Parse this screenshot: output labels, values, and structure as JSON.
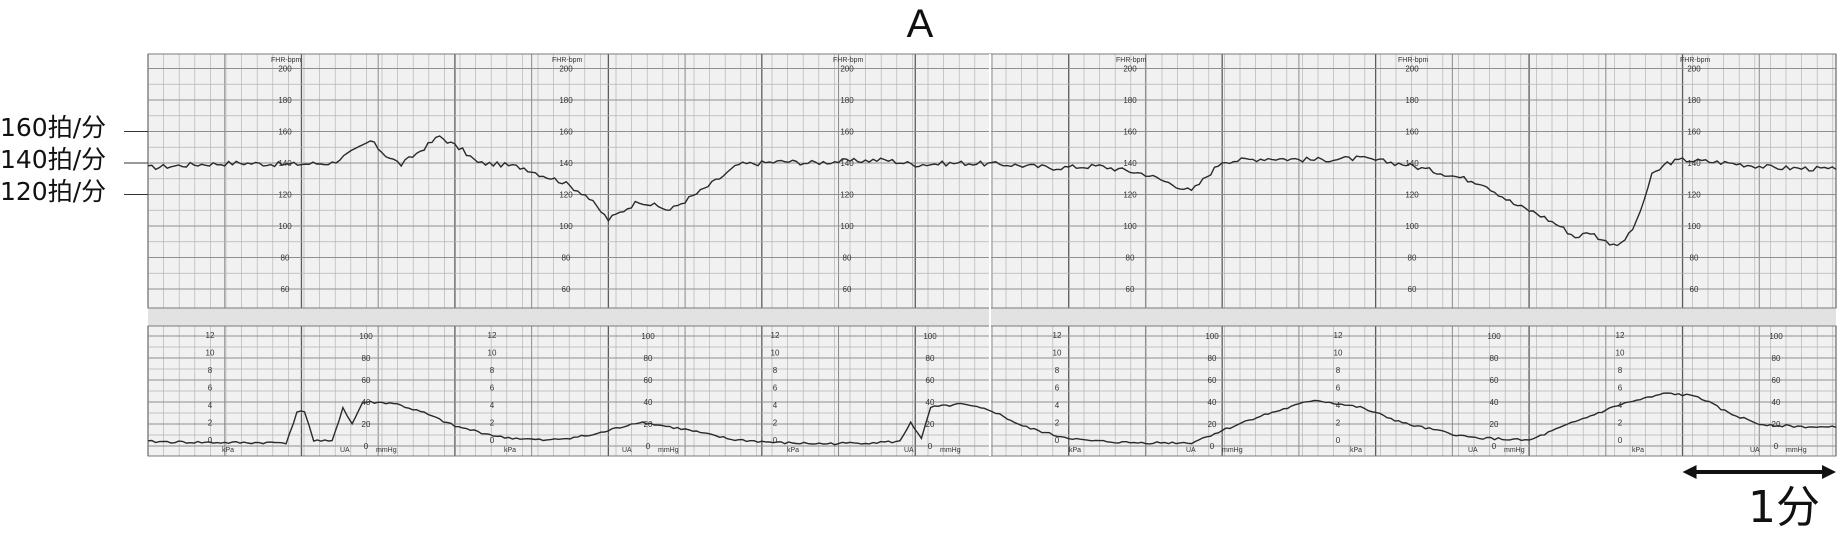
{
  "panel_label": "A",
  "fhr_markers": [
    {
      "label": "160拍/分",
      "value": 160
    },
    {
      "label": "140拍/分",
      "value": 140
    },
    {
      "label": "120拍/分",
      "value": 120
    }
  ],
  "scale_bar_label": "1分",
  "colors": {
    "grid": "#b5b5b5",
    "grid_major": "#5c5c5c",
    "paper": "#f1f1f1",
    "trace": "#2a2a2a",
    "axis": "#333333"
  },
  "chart_data": [
    {
      "type": "line",
      "title": "",
      "series": [
        {
          "name": "",
          "unit": "bpm"
        }
      ],
      "header_text": "FHR-bpm",
      "ylim": [
        50,
        210
      ],
      "tick_labels": [
        "200",
        "180",
        "160",
        "140",
        "120",
        "100",
        "80",
        "60"
      ],
      "x_unit": "min",
      "xlim": [
        0,
        11
      ],
      "x": [
        0,
        0.3,
        0.6,
        0.9,
        1.2,
        1.35,
        1.45,
        1.55,
        1.65,
        1.75,
        1.9,
        2.05,
        2.15,
        2.3,
        2.45,
        2.55,
        2.7,
        2.85,
        3,
        3.2,
        3.4,
        3.6,
        3.75,
        3.85,
        4,
        4.15,
        4.3,
        4.5,
        4.8,
        5,
        5.3,
        5.6,
        5.9,
        6.2,
        6.5,
        6.8,
        7,
        7.3,
        7.6,
        7.9,
        8.2,
        8.5,
        8.7,
        8.9,
        9.05,
        9.2,
        9.3,
        9.4,
        9.5,
        9.6,
        9.7,
        9.8,
        9.9,
        10,
        10.15,
        10.3,
        10.6,
        11
      ],
      "y": [
        137,
        139,
        140,
        139,
        140,
        148,
        154,
        145,
        139,
        146,
        157,
        148,
        140,
        139,
        137,
        133,
        128,
        120,
        104,
        116,
        110,
        122,
        132,
        139,
        140,
        141,
        140,
        141,
        142,
        139,
        140,
        139,
        137,
        138,
        133,
        122,
        141,
        143,
        142,
        143,
        139,
        132,
        127,
        114,
        108,
        100,
        93,
        96,
        90,
        88,
        102,
        132,
        140,
        142,
        141,
        140,
        137,
        136
      ]
    },
    {
      "type": "line",
      "title": "",
      "series": [
        {
          "name": "",
          "unit": "mmHg"
        }
      ],
      "tick_labels_kpa": [
        "12",
        "10",
        "8",
        "6",
        "4",
        "2",
        "0"
      ],
      "tick_labels_mmhg": [
        "100",
        "80",
        "60",
        "40",
        "20",
        "0"
      ],
      "unit_labels": [
        "kPa",
        "UA",
        "mmHg"
      ],
      "ylim": [
        0,
        100
      ],
      "x_unit": "min",
      "xlim": [
        0,
        11
      ],
      "x": [
        0,
        0.5,
        0.9,
        0.97,
        1.02,
        1.08,
        1.2,
        1.27,
        1.33,
        1.4,
        1.6,
        1.8,
        2,
        2.3,
        2.6,
        2.9,
        3.2,
        3.5,
        3.8,
        4.1,
        4.4,
        4.7,
        4.9,
        4.97,
        5.04,
        5.1,
        5.3,
        5.5,
        5.7,
        5.9,
        6.1,
        6.4,
        6.8,
        7.2,
        7.6,
        7.9,
        8.2,
        8.6,
        9,
        9.3,
        9.6,
        9.9,
        10.1,
        10.3,
        10.5,
        10.7,
        10.9,
        11
      ],
      "y": [
        4,
        3,
        3,
        30,
        32,
        5,
        4,
        35,
        20,
        40,
        39,
        30,
        18,
        8,
        5,
        10,
        22,
        15,
        6,
        3,
        2,
        3,
        4,
        22,
        6,
        35,
        38,
        32,
        18,
        10,
        5,
        3,
        3,
        25,
        42,
        35,
        20,
        8,
        5,
        22,
        38,
        48,
        45,
        30,
        20,
        18,
        17,
        17
      ]
    }
  ]
}
